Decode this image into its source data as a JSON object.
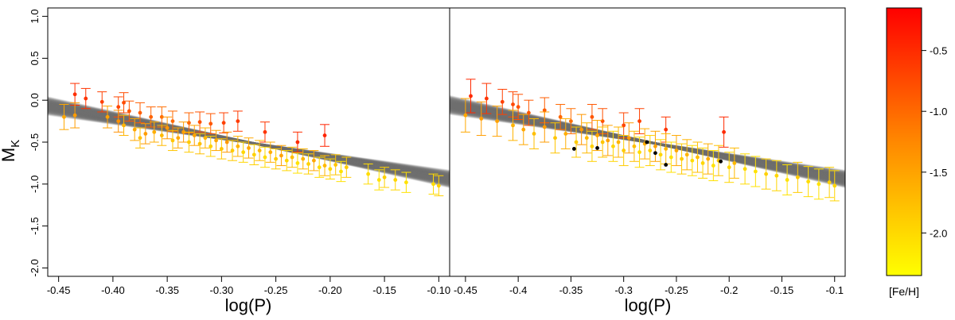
{
  "chart_data": {
    "type": "scatter",
    "description_of_panels": "two scatter panels sharing y axis, with error bars and gray fit band",
    "y_axis": {
      "label_main": "M",
      "label_sub": "K",
      "ylim": [
        1.1,
        -2.1
      ],
      "ticks": [
        -2.0,
        -1.5,
        -1.0,
        -0.5,
        0.0,
        0.5,
        1.0
      ],
      "tick_labels": [
        "-2.0",
        "-1.5",
        "-1.0",
        "-0.5",
        "0.0",
        "0.5",
        "1.0"
      ]
    },
    "colorbar": {
      "label": "[Fe/H]",
      "range": [
        -2.35,
        -0.15
      ],
      "ticks": [
        -0.5,
        -1.0,
        -1.5,
        -2.0
      ],
      "tick_labels": [
        "-0.5",
        "-1.0",
        "-1.5",
        "-2.0"
      ],
      "color_high": "#ff0000",
      "color_low": "#ffff00"
    },
    "fit": {
      "slope": -2.35,
      "intercept": -1.15,
      "band_color": "#7a7a7a"
    },
    "panels": [
      {
        "xlabel": "log(P)",
        "xlim": [
          -0.46,
          -0.09
        ],
        "ticks": [
          -0.45,
          -0.4,
          -0.35,
          -0.3,
          -0.25,
          -0.2,
          -0.15,
          -0.1
        ],
        "tick_labels": [
          "-0.45",
          "-0.40",
          "-0.35",
          "-0.30",
          "-0.25",
          "-0.20",
          "-0.15",
          "-0.10"
        ],
        "points": [
          [
            -0.435,
            0.07,
            0.13,
            -0.55
          ],
          [
            -0.425,
            0.02,
            0.12,
            -0.6
          ],
          [
            -0.41,
            -0.02,
            0.12,
            -0.7
          ],
          [
            -0.395,
            -0.08,
            0.12,
            -0.75
          ],
          [
            -0.39,
            -0.03,
            0.12,
            -0.8
          ],
          [
            -0.385,
            -0.13,
            0.12,
            -0.9
          ],
          [
            -0.375,
            -0.15,
            0.12,
            -0.95
          ],
          [
            -0.365,
            -0.2,
            0.12,
            -1.0
          ],
          [
            -0.355,
            -0.2,
            0.12,
            -1.1
          ],
          [
            -0.345,
            -0.25,
            0.12,
            -1.05
          ],
          [
            -0.33,
            -0.27,
            0.12,
            -1.0
          ],
          [
            -0.32,
            -0.26,
            0.12,
            -0.85
          ],
          [
            -0.31,
            -0.28,
            0.12,
            -0.9
          ],
          [
            -0.298,
            -0.27,
            0.12,
            -0.7
          ],
          [
            -0.285,
            -0.25,
            0.12,
            -0.65
          ],
          [
            -0.26,
            -0.38,
            0.12,
            -0.6
          ],
          [
            -0.23,
            -0.5,
            0.12,
            -0.55
          ],
          [
            -0.205,
            -0.42,
            0.13,
            -0.45
          ],
          [
            -0.445,
            -0.2,
            0.15,
            -1.6
          ],
          [
            -0.435,
            -0.18,
            0.15,
            -1.5
          ],
          [
            -0.405,
            -0.2,
            0.13,
            -1.55
          ],
          [
            -0.395,
            -0.25,
            0.13,
            -1.4
          ],
          [
            -0.39,
            -0.3,
            0.12,
            -1.7
          ],
          [
            -0.38,
            -0.35,
            0.13,
            -1.6
          ],
          [
            -0.375,
            -0.45,
            0.12,
            -1.8
          ],
          [
            -0.37,
            -0.4,
            0.12,
            -1.5
          ],
          [
            -0.362,
            -0.38,
            0.12,
            -1.65
          ],
          [
            -0.355,
            -0.42,
            0.12,
            -1.75
          ],
          [
            -0.35,
            -0.33,
            0.13,
            -1.45
          ],
          [
            -0.345,
            -0.48,
            0.12,
            -1.85
          ],
          [
            -0.34,
            -0.45,
            0.12,
            -1.6
          ],
          [
            -0.335,
            -0.38,
            0.12,
            -1.5
          ],
          [
            -0.33,
            -0.5,
            0.12,
            -1.9
          ],
          [
            -0.325,
            -0.42,
            0.12,
            -1.55
          ],
          [
            -0.32,
            -0.52,
            0.12,
            -1.8
          ],
          [
            -0.315,
            -0.45,
            0.12,
            -1.7
          ],
          [
            -0.31,
            -0.55,
            0.12,
            -1.95
          ],
          [
            -0.305,
            -0.48,
            0.12,
            -1.6
          ],
          [
            -0.3,
            -0.58,
            0.12,
            -1.85
          ],
          [
            -0.295,
            -0.5,
            0.12,
            -1.45
          ],
          [
            -0.29,
            -0.6,
            0.12,
            -1.9
          ],
          [
            -0.285,
            -0.55,
            0.12,
            -1.7
          ],
          [
            -0.28,
            -0.62,
            0.12,
            -2.0
          ],
          [
            -0.275,
            -0.57,
            0.12,
            -1.6
          ],
          [
            -0.27,
            -0.65,
            0.12,
            -1.95
          ],
          [
            -0.265,
            -0.6,
            0.12,
            -1.75
          ],
          [
            -0.26,
            -0.68,
            0.12,
            -2.05
          ],
          [
            -0.255,
            -0.62,
            0.12,
            -1.65
          ],
          [
            -0.25,
            -0.7,
            0.12,
            -1.9
          ],
          [
            -0.245,
            -0.66,
            0.12,
            -1.55
          ],
          [
            -0.24,
            -0.72,
            0.12,
            -2.0
          ],
          [
            -0.235,
            -0.68,
            0.12,
            -1.8
          ],
          [
            -0.23,
            -0.75,
            0.12,
            -2.1
          ],
          [
            -0.225,
            -0.7,
            0.12,
            -1.7
          ],
          [
            -0.22,
            -0.76,
            0.12,
            -1.95
          ],
          [
            -0.215,
            -0.72,
            0.12,
            -1.6
          ],
          [
            -0.21,
            -0.8,
            0.12,
            -2.05
          ],
          [
            -0.205,
            -0.78,
            0.12,
            -1.75
          ],
          [
            -0.2,
            -0.82,
            0.12,
            -2.0
          ],
          [
            -0.195,
            -0.77,
            0.12,
            -1.85
          ],
          [
            -0.19,
            -0.85,
            0.12,
            -2.1
          ],
          [
            -0.185,
            -0.8,
            0.12,
            -1.9
          ],
          [
            -0.165,
            -0.88,
            0.12,
            -2.05
          ],
          [
            -0.155,
            -0.95,
            0.12,
            -2.1
          ],
          [
            -0.15,
            -0.92,
            0.12,
            -1.95
          ],
          [
            -0.14,
            -0.95,
            0.12,
            -2.0
          ],
          [
            -0.13,
            -0.98,
            0.12,
            -2.1
          ],
          [
            -0.105,
            -1.0,
            0.12,
            -2.05
          ],
          [
            -0.1,
            -1.02,
            0.12,
            -1.95
          ]
        ]
      },
      {
        "xlabel": "log(P)",
        "xlim": [
          -0.465,
          -0.09
        ],
        "ticks": [
          -0.45,
          -0.4,
          -0.35,
          -0.3,
          -0.25,
          -0.2,
          -0.15,
          -0.1
        ],
        "tick_labels": [
          "-0.45",
          "-0.4",
          "-0.35",
          "-0.3",
          "-0.25",
          "-0.2",
          "-0.15",
          "-0.1"
        ],
        "points": [
          [
            -0.445,
            0.05,
            0.2,
            -0.5
          ],
          [
            -0.43,
            0.02,
            0.18,
            -0.6
          ],
          [
            -0.415,
            -0.02,
            0.15,
            -0.7
          ],
          [
            -0.405,
            -0.05,
            0.15,
            -0.75
          ],
          [
            -0.4,
            -0.08,
            0.15,
            -0.85
          ],
          [
            -0.39,
            -0.15,
            0.15,
            -0.9
          ],
          [
            -0.375,
            -0.12,
            0.15,
            -0.95
          ],
          [
            -0.36,
            -0.2,
            0.15,
            -1.05
          ],
          [
            -0.35,
            -0.25,
            0.15,
            -1.1
          ],
          [
            -0.33,
            -0.2,
            0.15,
            -0.9
          ],
          [
            -0.32,
            -0.25,
            0.15,
            -0.85
          ],
          [
            -0.3,
            -0.3,
            0.15,
            -0.75
          ],
          [
            -0.285,
            -0.25,
            0.15,
            -0.7
          ],
          [
            -0.26,
            -0.35,
            0.15,
            -0.6
          ],
          [
            -0.205,
            -0.38,
            0.18,
            -0.5
          ],
          [
            -0.45,
            -0.18,
            0.2,
            -1.6
          ],
          [
            -0.435,
            -0.22,
            0.2,
            -1.5
          ],
          [
            -0.42,
            -0.25,
            0.18,
            -1.55
          ],
          [
            -0.405,
            -0.3,
            0.18,
            -1.7
          ],
          [
            -0.395,
            -0.35,
            0.18,
            -1.6
          ],
          [
            -0.385,
            -0.4,
            0.18,
            -1.8
          ],
          [
            -0.375,
            -0.32,
            0.18,
            -1.5
          ],
          [
            -0.365,
            -0.45,
            0.18,
            -1.85
          ],
          [
            -0.355,
            -0.4,
            0.18,
            -1.65
          ],
          [
            -0.345,
            -0.5,
            0.18,
            -1.9
          ],
          [
            -0.34,
            -0.35,
            0.18,
            -1.45
          ],
          [
            -0.335,
            -0.45,
            0.18,
            -1.75
          ],
          [
            -0.33,
            -0.55,
            0.18,
            -1.95
          ],
          [
            -0.325,
            -0.42,
            0.18,
            -1.6
          ],
          [
            -0.32,
            -0.5,
            0.18,
            -1.85
          ],
          [
            -0.315,
            -0.48,
            0.18,
            -1.55
          ],
          [
            -0.31,
            -0.55,
            0.18,
            -2.0
          ],
          [
            -0.305,
            -0.5,
            0.18,
            -1.7
          ],
          [
            -0.3,
            -0.6,
            0.18,
            -1.9
          ],
          [
            -0.295,
            -0.45,
            0.18,
            -1.5
          ],
          [
            -0.29,
            -0.55,
            0.18,
            -1.8
          ],
          [
            -0.285,
            -0.62,
            0.18,
            -2.05
          ],
          [
            -0.28,
            -0.52,
            0.18,
            -1.65
          ],
          [
            -0.275,
            -0.6,
            0.18,
            -1.95
          ],
          [
            -0.27,
            -0.55,
            0.18,
            -1.55
          ],
          [
            -0.265,
            -0.65,
            0.18,
            -2.0
          ],
          [
            -0.26,
            -0.58,
            0.18,
            -1.75
          ],
          [
            -0.255,
            -0.68,
            0.18,
            -2.1
          ],
          [
            -0.25,
            -0.6,
            0.18,
            -1.6
          ],
          [
            -0.245,
            -0.7,
            0.18,
            -1.9
          ],
          [
            -0.24,
            -0.65,
            0.18,
            -1.7
          ],
          [
            -0.235,
            -0.72,
            0.18,
            -2.05
          ],
          [
            -0.23,
            -0.68,
            0.18,
            -1.8
          ],
          [
            -0.225,
            -0.75,
            0.18,
            -2.0
          ],
          [
            -0.22,
            -0.7,
            0.18,
            -1.65
          ],
          [
            -0.215,
            -0.78,
            0.18,
            -2.1
          ],
          [
            -0.21,
            -0.72,
            0.18,
            -1.85
          ],
          [
            -0.2,
            -0.8,
            0.18,
            -2.0
          ],
          [
            -0.195,
            -0.75,
            0.18,
            -1.75
          ],
          [
            -0.185,
            -0.82,
            0.18,
            -2.05
          ],
          [
            -0.175,
            -0.85,
            0.18,
            -2.1
          ],
          [
            -0.165,
            -0.88,
            0.18,
            -1.95
          ],
          [
            -0.155,
            -0.9,
            0.18,
            -2.0
          ],
          [
            -0.145,
            -0.95,
            0.18,
            -2.1
          ],
          [
            -0.135,
            -0.92,
            0.18,
            -1.9
          ],
          [
            -0.125,
            -0.97,
            0.18,
            -2.05
          ],
          [
            -0.115,
            -1.0,
            0.18,
            -2.1
          ],
          [
            -0.105,
            -0.98,
            0.18,
            -1.95
          ],
          [
            -0.1,
            -1.02,
            0.18,
            -2.0
          ]
        ],
        "black_points": [
          [
            -0.347,
            -0.58
          ],
          [
            -0.325,
            -0.57
          ],
          [
            -0.278,
            -0.5
          ],
          [
            -0.27,
            -0.63
          ],
          [
            -0.26,
            -0.77
          ],
          [
            -0.208,
            -0.73
          ]
        ]
      }
    ]
  }
}
